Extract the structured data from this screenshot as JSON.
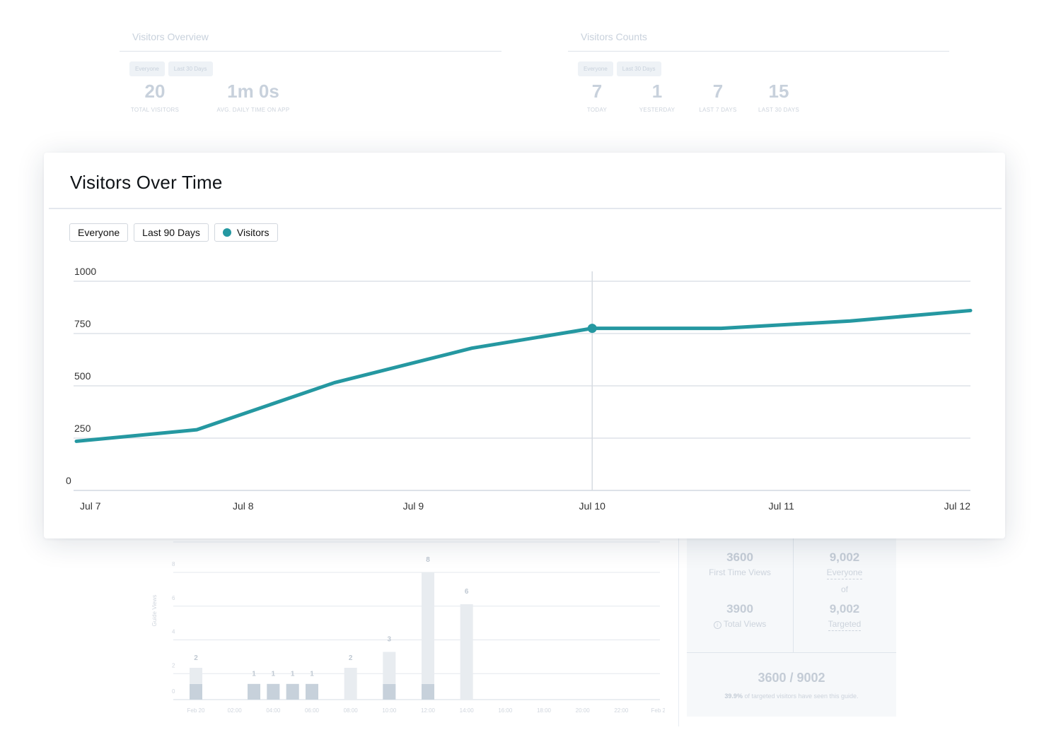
{
  "overview": {
    "title": "Visitors Overview",
    "chips": [
      "Everyone",
      "Last 30 Days"
    ],
    "stats": [
      {
        "value": "20",
        "label": "TOTAL VISITORS"
      },
      {
        "value": "1m 0s",
        "label": "AVG. DAILY TIME ON APP"
      }
    ]
  },
  "counts": {
    "title": "Visitors Counts",
    "chips": [
      "Everyone",
      "Last 30 Days"
    ],
    "stats": [
      {
        "value": "7",
        "label": "TODAY"
      },
      {
        "value": "1",
        "label": "YESTERDAY"
      },
      {
        "value": "7",
        "label": "LAST 7 DAYS"
      },
      {
        "value": "15",
        "label": "LAST 30 DAYS"
      }
    ]
  },
  "main": {
    "title": "Visitors Over Time",
    "filters": {
      "segment": "Everyone",
      "range": "Last 90 Days",
      "series": "Visitors"
    },
    "colors": {
      "line": "#2598a1",
      "grid": "#dde2e8",
      "crosshair": "#d6dbe1"
    }
  },
  "guide_stats": {
    "first_time_views": {
      "value": "3600",
      "label": "First Time Views"
    },
    "total_views": {
      "value": "3900",
      "label": "Total Views"
    },
    "everyone": {
      "value": "9,002",
      "label": "Everyone"
    },
    "of_text": "of",
    "targeted": {
      "value": "9,002",
      "label": "Targeted"
    },
    "ratio": "3600 / 9002",
    "percent": "39.9%",
    "note": " of targeted visitors have seen this guide."
  },
  "chart_data": [
    {
      "type": "line",
      "title": "Visitors Over Time",
      "series": [
        {
          "name": "Visitors",
          "color": "#2598a1",
          "x": [
            0,
            0.7,
            1.5,
            2.3,
            3.0,
            3.75,
            4.5,
            5.2
          ],
          "values": [
            235,
            290,
            515,
            680,
            775,
            775,
            810,
            860
          ]
        }
      ],
      "x_tick_labels": [
        "Jul 7",
        "Jul 8",
        "Jul 9",
        "Jul 10",
        "Jul 11",
        "Jul 12"
      ],
      "x_tick_positions": [
        0,
        0.97,
        1.96,
        3.0,
        4.1,
        5.2
      ],
      "yticks": [
        0,
        250,
        500,
        750,
        1000
      ],
      "ylim": [
        0,
        1000
      ],
      "xlim": [
        0,
        5.2
      ],
      "highlight": {
        "x": 3.0,
        "value": 775
      }
    },
    {
      "type": "bar",
      "ylabel": "Guide Views",
      "categories": [
        "Feb 20",
        "",
        "02:00",
        "",
        "04:00",
        "",
        "06:00",
        "",
        "08:00",
        "",
        "10:00",
        "",
        "12:00",
        "",
        "14:00",
        "",
        "16:00",
        "",
        "18:00",
        "",
        "20:00",
        "",
        "22:00",
        "",
        "Feb 21"
      ],
      "x_tick_labels": [
        "Feb 20",
        "02:00",
        "04:00",
        "06:00",
        "08:00",
        "10:00",
        "12:00",
        "14:00",
        "16:00",
        "18:00",
        "20:00",
        "22:00",
        "Feb 21"
      ],
      "series": [
        {
          "name": "First Time",
          "values": [
            1,
            0,
            0,
            1,
            1,
            1,
            1,
            0,
            0,
            0,
            1,
            0,
            1,
            0,
            0,
            0,
            0,
            0,
            0,
            0,
            0,
            0,
            0,
            0,
            0
          ]
        },
        {
          "name": "Total",
          "values": [
            2,
            0,
            0,
            1,
            1,
            1,
            1,
            0,
            2,
            0,
            3,
            0,
            8,
            0,
            6,
            0,
            0,
            0,
            0,
            0,
            0,
            0,
            0,
            0,
            0
          ]
        }
      ],
      "data_labels": [
        "2",
        "",
        "",
        "1",
        "1",
        "1",
        "1",
        "",
        "2",
        "",
        "3",
        "",
        "8",
        "",
        "6",
        "",
        "",
        "",
        "",
        "",
        "",
        "",
        "",
        "",
        ""
      ],
      "yticks": [
        0,
        2,
        4,
        6,
        8
      ],
      "ylim": [
        0,
        8
      ]
    }
  ]
}
